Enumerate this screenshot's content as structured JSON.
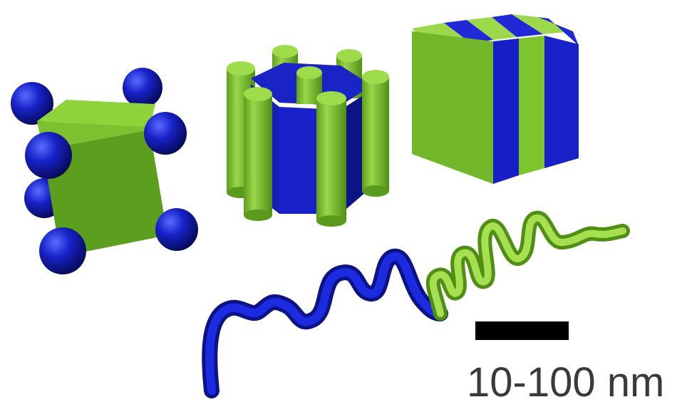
{
  "colors": {
    "blue": "#1822c8",
    "blue_dark": "#0c1386",
    "green": "#7ecb2a",
    "green_dark": "#4f8f16",
    "green_light": "#a6e050",
    "scale_bar": "#000000"
  },
  "models": [
    {
      "name": "cube-with-corner-spheres"
    },
    {
      "name": "hexagonal-cylinder-array"
    },
    {
      "name": "lamellar-striped-cube"
    },
    {
      "name": "diblock-copolymer-coil"
    }
  ],
  "scale_bar": {
    "label": "10-100 nm"
  }
}
